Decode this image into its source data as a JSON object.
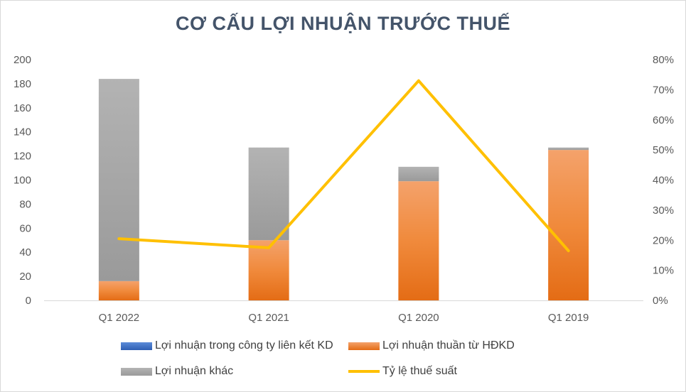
{
  "chart_data": {
    "type": "bar",
    "title": "CƠ CẤU LỢI NHUẬN TRƯỚC THUẾ",
    "categories": [
      "Q1 2022",
      "Q1 2021",
      "Q1 2020",
      "Q1 2019"
    ],
    "stacked": true,
    "ylim": [
      0,
      200
    ],
    "yticks": [
      "0",
      "20",
      "40",
      "60",
      "80",
      "100",
      "120",
      "140",
      "160",
      "180",
      "200"
    ],
    "y2lim": [
      0,
      0.8
    ],
    "y2ticks": [
      "0%",
      "10%",
      "20%",
      "30%",
      "40%",
      "50%",
      "60%",
      "70%",
      "80%"
    ],
    "series": [
      {
        "name": "Lợi nhuận trong công ty liên kết KD",
        "type": "bar",
        "axis": "left",
        "color": "#4472c4",
        "values": [
          0,
          0,
          0,
          0
        ]
      },
      {
        "name": "Lợi nhuận thuần từ HĐKD",
        "type": "bar",
        "axis": "left",
        "color": "#ed7d31",
        "values": [
          16,
          50,
          99,
          125
        ]
      },
      {
        "name": "Lợi nhuận khác",
        "type": "bar",
        "axis": "left",
        "color": "#a5a5a5",
        "values": [
          168,
          77,
          12,
          2
        ]
      },
      {
        "name": "Tỷ lệ thuế suất",
        "type": "line",
        "axis": "right",
        "color": "#ffc000",
        "values": [
          0.205,
          0.175,
          0.73,
          0.165
        ]
      }
    ],
    "grid": false,
    "legend_position": "bottom"
  }
}
